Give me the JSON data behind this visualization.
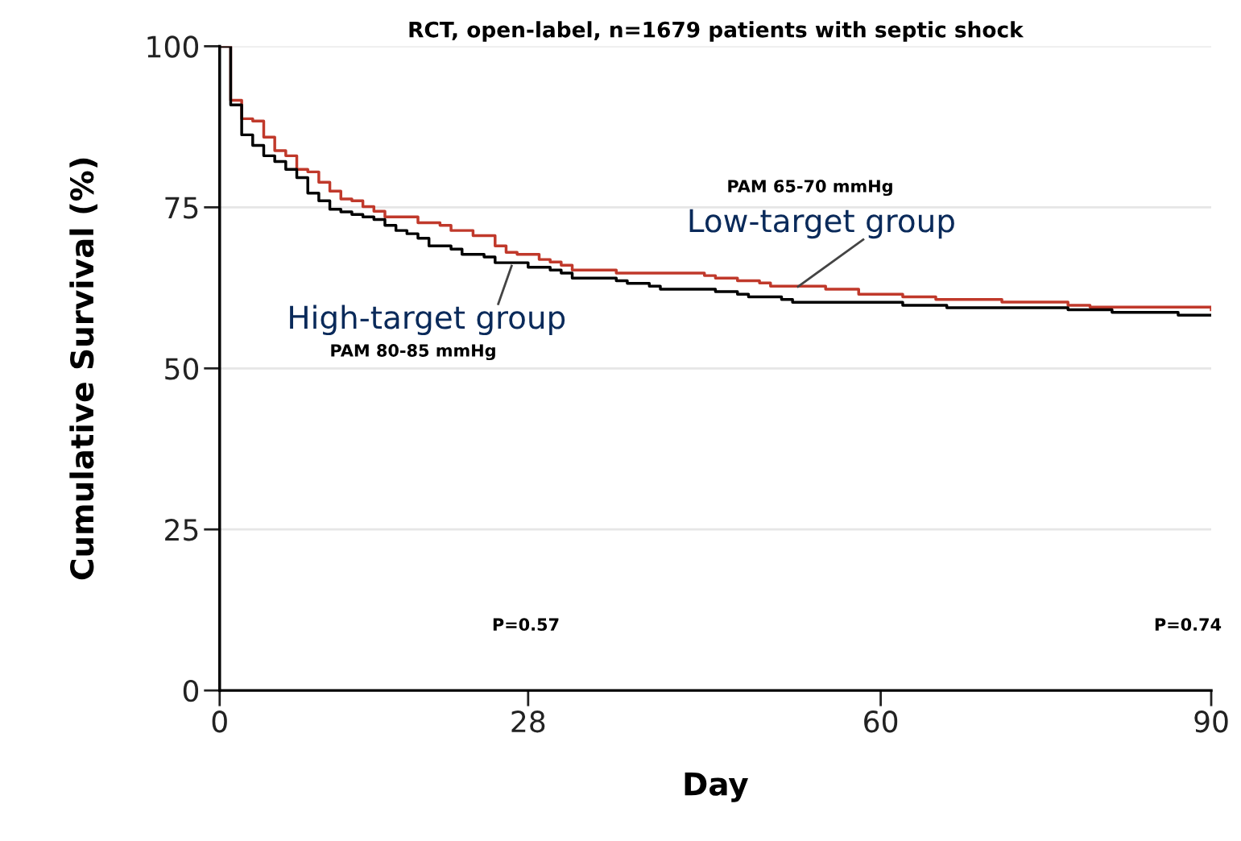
{
  "chart_data": {
    "type": "step",
    "title": "RCT, open-label, n=1679 patients with septic shock",
    "xlabel": "Day",
    "ylabel": "Cumulative Survival (%)",
    "xlim": [
      0,
      90
    ],
    "xticks": [
      0,
      28,
      60,
      90
    ],
    "ylim": [
      0,
      100
    ],
    "yticks": [
      0,
      25,
      50,
      75,
      100
    ],
    "grid": "y",
    "legend": false,
    "marker": "none",
    "line_style": "solid",
    "series": [
      {
        "name": "Low-target group",
        "color": "#c0392b",
        "x": [
          0,
          1,
          2,
          3,
          4,
          5,
          6,
          7,
          8,
          9,
          10,
          11,
          12,
          13,
          14,
          15,
          18,
          20,
          21,
          23,
          25,
          26,
          27,
          29,
          30,
          31,
          32,
          36,
          44,
          45,
          47,
          49,
          50,
          55,
          58,
          62,
          65,
          71,
          77,
          79,
          90
        ],
        "values": [
          100,
          91.6,
          88.75,
          88.4,
          85.9,
          83.8,
          83.0,
          80.9,
          80.5,
          78.9,
          77.5,
          76.3,
          76.0,
          75.1,
          74.4,
          73.5,
          72.6,
          72.2,
          71.4,
          70.6,
          69.0,
          68.0,
          67.7,
          66.9,
          66.5,
          66.0,
          65.25,
          64.8,
          64.4,
          64.0,
          63.6,
          63.25,
          62.75,
          62.3,
          61.5,
          61.1,
          60.7,
          60.3,
          59.8,
          59.5,
          59.1
        ]
      },
      {
        "name": "High-target group",
        "color": "#000000",
        "x": [
          0,
          1,
          2,
          3,
          4,
          5,
          6,
          7,
          8,
          9,
          10,
          11,
          12,
          13,
          14,
          15,
          16,
          17,
          18,
          19,
          21,
          22,
          24,
          25,
          28,
          30,
          31,
          32,
          36,
          37,
          39,
          40,
          45,
          47,
          48,
          51,
          52,
          62,
          66,
          77,
          81,
          87,
          90
        ],
        "values": [
          100,
          90.9,
          86.25,
          84.6,
          83.0,
          82.1,
          80.9,
          79.6,
          77.2,
          76.0,
          74.7,
          74.3,
          73.9,
          73.5,
          73.1,
          72.2,
          71.4,
          70.9,
          70.2,
          69.0,
          68.5,
          67.7,
          67.3,
          66.4,
          65.7,
          65.25,
          64.8,
          64.0,
          63.6,
          63.2,
          62.75,
          62.3,
          61.9,
          61.5,
          61.1,
          60.7,
          60.25,
          59.8,
          59.4,
          59.1,
          58.7,
          58.25,
          58.25
        ]
      }
    ],
    "annotations": [
      "PAM 65-70 mmHg",
      "PAM 80-85 mmHg",
      "P=0.57",
      "P=0.74"
    ]
  }
}
